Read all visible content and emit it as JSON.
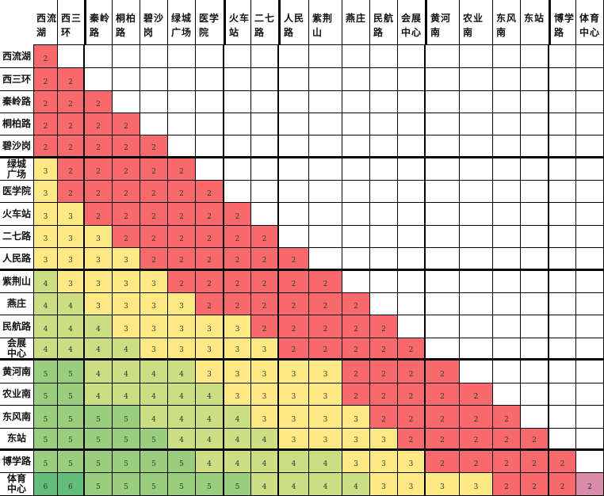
{
  "stations": [
    "西流湖",
    "西三环",
    "秦岭路",
    "桐柏路",
    "碧沙岗",
    "绿城广场",
    "医学院",
    "火车站",
    "二七路",
    "人民路",
    "紫荆山",
    "燕庄",
    "民航路",
    "会展中心",
    "黄河南",
    "农业南",
    "东风南",
    "东站",
    "博学路",
    "体育中心"
  ],
  "header_labels": [
    "西流\n湖",
    "西三\n环",
    "秦岭\n路",
    "桐柏\n路",
    "碧沙\n岗",
    "绿城\n广场",
    "医学\n院",
    "火车\n站",
    "二七\n路",
    "人民\n路",
    "紫荆\n山",
    "燕庄",
    "民航\n路",
    "会展\n中心",
    "黄河\n南",
    "农业\n南",
    "东风\n南",
    "东站",
    "博学\n路",
    "体育\n中心"
  ],
  "row_labels": [
    "西流湖",
    "西三环",
    "秦岭路",
    "桐柏路",
    "碧沙岗",
    "绿城\n广场",
    "医学院",
    "火车站",
    "二七路",
    "人民路",
    "紫荆山",
    "燕庄",
    "民航路",
    "会展\n中心",
    "黄河南",
    "农业南",
    "东风南",
    "东站",
    "博学路",
    "体育\n中心"
  ],
  "fares": [
    [
      2
    ],
    [
      2,
      2
    ],
    [
      2,
      2,
      2
    ],
    [
      2,
      2,
      2,
      2
    ],
    [
      2,
      2,
      2,
      2,
      2
    ],
    [
      3,
      2,
      2,
      2,
      2,
      2
    ],
    [
      3,
      2,
      2,
      2,
      2,
      2,
      2
    ],
    [
      3,
      3,
      2,
      2,
      2,
      2,
      2,
      2
    ],
    [
      3,
      3,
      3,
      2,
      2,
      2,
      2,
      2,
      2
    ],
    [
      3,
      3,
      3,
      3,
      2,
      2,
      2,
      2,
      2,
      2
    ],
    [
      4,
      3,
      3,
      3,
      3,
      2,
      2,
      2,
      2,
      2,
      2
    ],
    [
      4,
      4,
      3,
      3,
      3,
      3,
      2,
      2,
      2,
      2,
      2,
      2
    ],
    [
      4,
      4,
      4,
      3,
      3,
      3,
      3,
      3,
      2,
      2,
      2,
      2,
      2
    ],
    [
      4,
      4,
      4,
      4,
      3,
      3,
      3,
      3,
      3,
      2,
      2,
      2,
      2,
      2
    ],
    [
      5,
      5,
      4,
      4,
      4,
      4,
      3,
      3,
      3,
      3,
      3,
      2,
      2,
      2,
      2
    ],
    [
      5,
      5,
      4,
      4,
      4,
      4,
      4,
      3,
      3,
      3,
      3,
      2,
      2,
      2,
      2,
      2
    ],
    [
      5,
      5,
      5,
      5,
      4,
      4,
      4,
      4,
      3,
      3,
      3,
      3,
      2,
      2,
      2,
      2,
      2
    ],
    [
      5,
      5,
      5,
      5,
      5,
      4,
      4,
      4,
      4,
      3,
      3,
      3,
      3,
      2,
      2,
      2,
      2,
      2
    ],
    [
      5,
      5,
      5,
      5,
      5,
      5,
      4,
      4,
      4,
      4,
      4,
      3,
      3,
      3,
      2,
      2,
      2,
      2,
      2
    ],
    [
      6,
      6,
      5,
      5,
      5,
      5,
      5,
      5,
      4,
      4,
      4,
      4,
      3,
      3,
      3,
      3,
      2,
      2,
      2,
      2
    ]
  ],
  "colors": {
    "2": "#f8696b",
    "3": "#ffe984",
    "4": "#cddd81",
    "5": "#98ce7d",
    "6": "#63be7b",
    "highlight": "#d98ba8",
    "empty": "#ffffff"
  }
}
